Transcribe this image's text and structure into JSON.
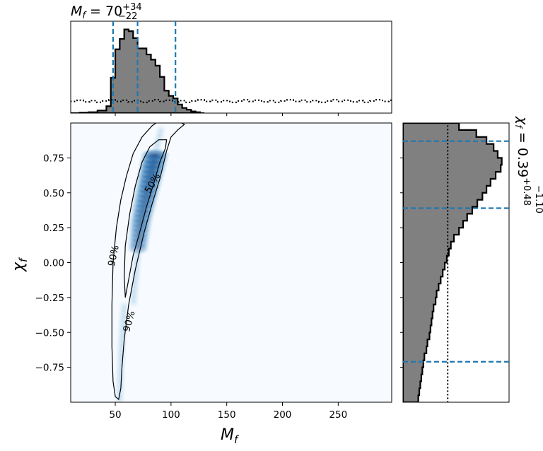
{
  "title_top": {
    "main": "M",
    "sub": "f",
    "equals": " = 70",
    "sup": "+34",
    "subscr": "−22"
  },
  "title_right": {
    "main": "χ",
    "sub": "f",
    "equals": " = 0.39",
    "sup": "+0.48",
    "subscr": "−1.10"
  },
  "axes": {
    "x": {
      "label_main": "M",
      "label_sub": "f",
      "range": [
        10,
        298
      ],
      "ticks": [
        50,
        100,
        150,
        200,
        250
      ],
      "tick_labels": [
        "50",
        "100",
        "150",
        "200",
        "250"
      ]
    },
    "y": {
      "label_main": "χ",
      "label_sub": "f",
      "range": [
        -1.0,
        1.0
      ],
      "ticks": [
        -0.75,
        -0.5,
        -0.25,
        0.0,
        0.25,
        0.5,
        0.75
      ],
      "tick_labels": [
        "−0.75",
        "−0.50",
        "−0.25",
        "0.00",
        "0.25",
        "0.50",
        "0.75"
      ]
    }
  },
  "colors": {
    "hist_fill": "#808080",
    "quantile_line": "#1f77b4",
    "density_peak": "#08306b",
    "density_low": "#f7fbff"
  },
  "chart_data": {
    "type": "corner",
    "mass_histogram": {
      "xlabel": "Mf",
      "bin_edges": [
        10,
        18,
        26,
        34,
        42,
        46,
        50,
        54,
        58,
        62,
        66,
        70,
        74,
        78,
        82,
        86,
        90,
        94,
        98,
        102,
        106,
        110,
        114,
        118,
        122,
        126,
        130
      ],
      "counts": [
        0.0,
        0.005,
        0.01,
        0.03,
        0.08,
        0.41,
        0.74,
        0.86,
        0.97,
        0.95,
        0.87,
        0.75,
        0.75,
        0.68,
        0.62,
        0.55,
        0.42,
        0.26,
        0.2,
        0.17,
        0.1,
        0.06,
        0.04,
        0.02,
        0.01,
        0.0
      ],
      "prior_level": 0.14,
      "quantiles": [
        48,
        70,
        104
      ]
    },
    "spin_histogram": {
      "ylabel": "χf",
      "bin_edges": [
        -1.0,
        -0.95,
        -0.9,
        -0.85,
        -0.8,
        -0.75,
        -0.7,
        -0.65,
        -0.6,
        -0.55,
        -0.5,
        -0.45,
        -0.4,
        -0.35,
        -0.3,
        -0.25,
        -0.2,
        -0.15,
        -0.1,
        -0.05,
        0.0,
        0.05,
        0.1,
        0.15,
        0.2,
        0.25,
        0.3,
        0.35,
        0.4,
        0.45,
        0.5,
        0.55,
        0.6,
        0.65,
        0.7,
        0.75,
        0.8,
        0.85,
        0.9,
        0.95,
        1.0
      ],
      "counts": [
        0.15,
        0.16,
        0.17,
        0.18,
        0.19,
        0.2,
        0.21,
        0.23,
        0.24,
        0.26,
        0.27,
        0.28,
        0.29,
        0.3,
        0.32,
        0.33,
        0.35,
        0.37,
        0.39,
        0.41,
        0.43,
        0.45,
        0.47,
        0.5,
        0.55,
        0.59,
        0.63,
        0.68,
        0.73,
        0.78,
        0.82,
        0.86,
        0.91,
        0.96,
        0.97,
        0.93,
        0.89,
        0.82,
        0.72,
        0.55
      ],
      "prior_level": 0.45,
      "quantiles": [
        -0.71,
        0.39,
        0.87
      ]
    },
    "joint_density": {
      "xlabel": "Mf",
      "ylabel": "χf",
      "contours": [
        {
          "label": "90%",
          "label_positions": [
            [
              48,
              0.05
            ],
            [
              62,
              -0.42
            ]
          ]
        },
        {
          "label": "50%",
          "label_positions": [
            [
              83,
              0.57
            ]
          ]
        }
      ]
    }
  }
}
